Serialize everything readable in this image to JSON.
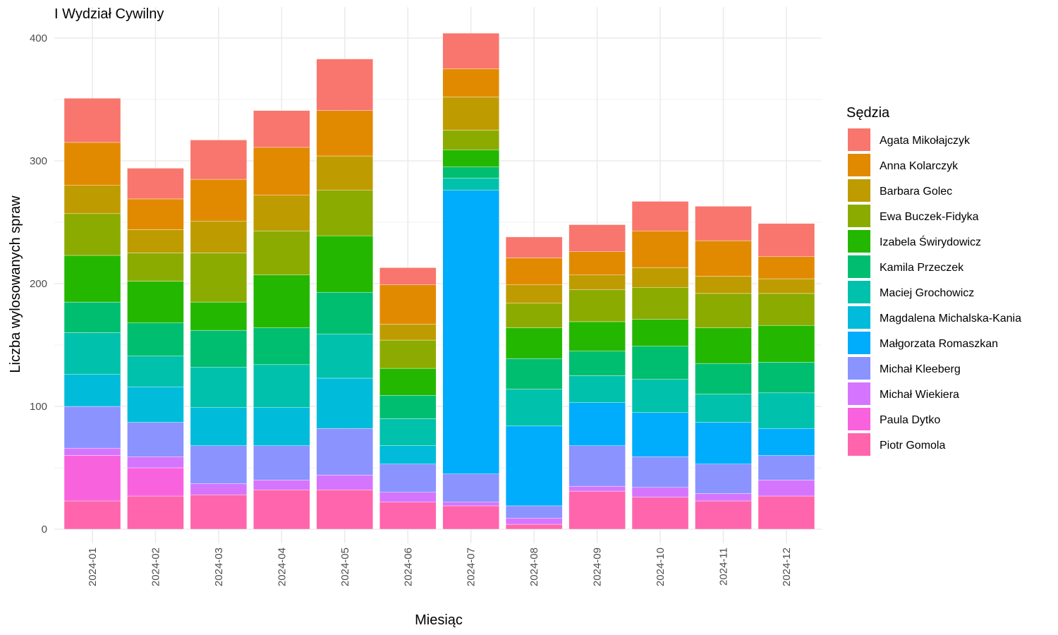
{
  "chart_data": {
    "type": "bar",
    "stacked": true,
    "title": "I Wydział Cywilny",
    "xlabel": "Miesiąc",
    "ylabel": "Liczba wylosowanych spraw",
    "ylim": [
      0,
      420
    ],
    "yticks": [
      0,
      100,
      200,
      300,
      400
    ],
    "grid": true,
    "legend_title": "Sędzia",
    "legend_position": "right",
    "categories": [
      "2024-01",
      "2024-02",
      "2024-03",
      "2024-04",
      "2024-05",
      "2024-06",
      "2024-07",
      "2024-08",
      "2024-09",
      "2024-10",
      "2024-11",
      "2024-12"
    ],
    "series": [
      {
        "name": "Agata Mikołajczyk",
        "color": "#F8766D",
        "values": [
          36,
          25,
          32,
          30,
          42,
          14,
          29,
          17,
          22,
          24,
          28,
          27
        ]
      },
      {
        "name": "Anna Kolarczyk",
        "color": "#E18A00",
        "values": [
          35,
          25,
          34,
          39,
          37,
          32,
          23,
          22,
          19,
          30,
          29,
          18
        ]
      },
      {
        "name": "Barbara Golec",
        "color": "#BE9C00",
        "values": [
          23,
          19,
          26,
          29,
          28,
          13,
          27,
          15,
          12,
          16,
          14,
          12
        ]
      },
      {
        "name": "Ewa Buczek-Fidyka",
        "color": "#8CAB00",
        "values": [
          34,
          23,
          40,
          36,
          37,
          23,
          16,
          20,
          26,
          26,
          28,
          26
        ]
      },
      {
        "name": "Izabela Świrydowicz",
        "color": "#24B700",
        "values": [
          38,
          34,
          23,
          43,
          46,
          22,
          14,
          25,
          24,
          22,
          29,
          30
        ]
      },
      {
        "name": "Kamila Przeczek",
        "color": "#00BE70",
        "values": [
          25,
          27,
          30,
          30,
          34,
          19,
          9,
          25,
          20,
          27,
          25,
          25
        ]
      },
      {
        "name": "Maciej Grochowicz",
        "color": "#00C1AB",
        "values": [
          34,
          25,
          33,
          35,
          36,
          22,
          10,
          30,
          22,
          27,
          23,
          29
        ]
      },
      {
        "name": "Magdalena Michalska-Kania",
        "color": "#00BBDA",
        "values": [
          26,
          29,
          31,
          31,
          41,
          15,
          0,
          0,
          0,
          0,
          0,
          0
        ]
      },
      {
        "name": "Małgorzata Romaszkan",
        "color": "#00ACFC",
        "values": [
          0,
          0,
          0,
          0,
          0,
          0,
          231,
          65,
          35,
          36,
          34,
          22
        ]
      },
      {
        "name": "Michał Kleeberg",
        "color": "#8B93FF",
        "values": [
          34,
          28,
          31,
          28,
          38,
          23,
          23,
          10,
          33,
          25,
          24,
          20
        ]
      },
      {
        "name": "Michał Wiekiera",
        "color": "#D575FE",
        "values": [
          6,
          9,
          9,
          8,
          12,
          8,
          3,
          5,
          4,
          8,
          6,
          13
        ]
      },
      {
        "name": "Paula Dytko",
        "color": "#F962DD",
        "values": [
          37,
          23,
          0,
          0,
          0,
          0,
          0,
          0,
          0,
          0,
          0,
          0
        ]
      },
      {
        "name": "Piotr Gomola",
        "color": "#FF65AC",
        "values": [
          23,
          27,
          28,
          32,
          32,
          22,
          19,
          4,
          31,
          26,
          23,
          27
        ]
      }
    ]
  }
}
